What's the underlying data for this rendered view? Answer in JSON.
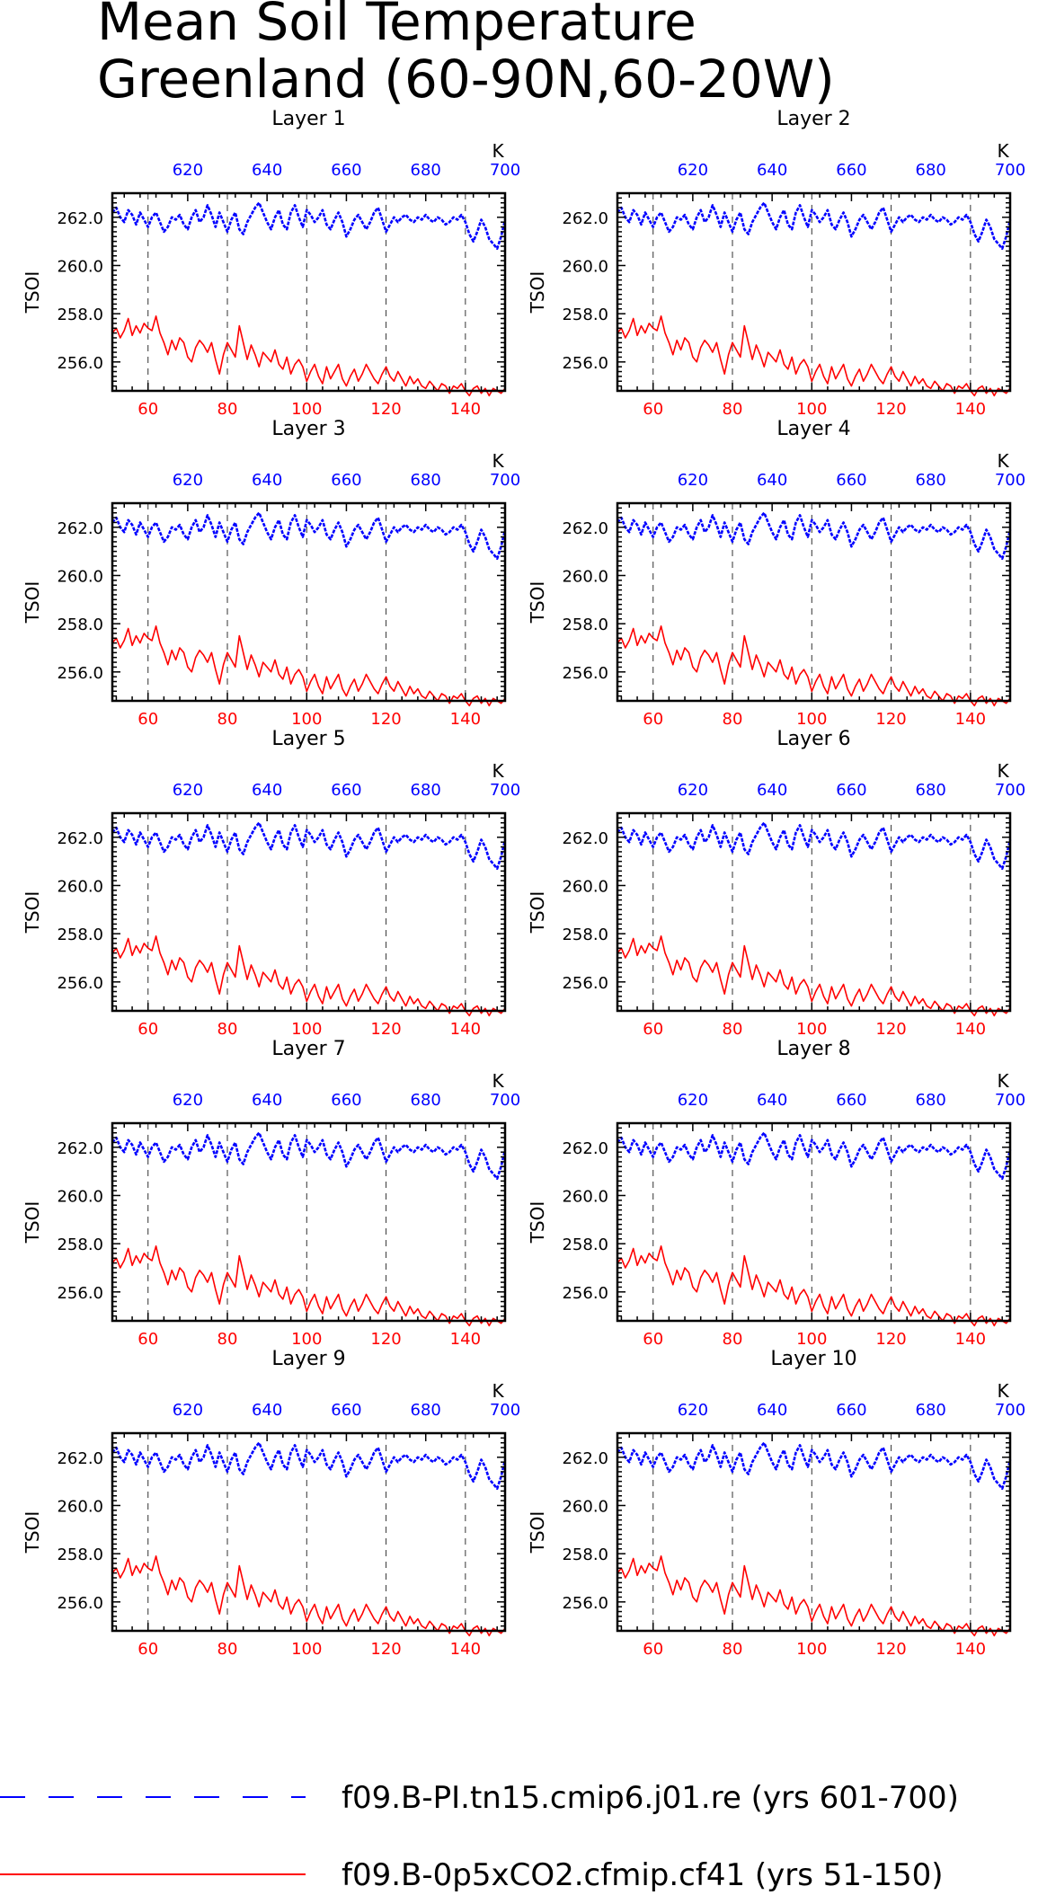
{
  "title_line1": "Mean Soil Temperature",
  "title_line2": "Greenland (60-90N,60-20W)",
  "legend": [
    {
      "label": "f09.B-PI.tn15.cmip6.j01.re (yrs 601-700)",
      "color": "#0000ff",
      "style": "dashed"
    },
    {
      "label": "f09.B-0p5xCO2.cfmip.cf41 (yrs 51-150)",
      "color": "#ff0000",
      "style": "solid"
    }
  ],
  "colors": {
    "pi": "#0000ff",
    "co2": "#ff0000",
    "axis": "#000000"
  },
  "chart_data": {
    "type": "line",
    "panel_titles": [
      "Layer 1",
      "Layer 2",
      "Layer 3",
      "Layer 4",
      "Layer 5",
      "Layer 6",
      "Layer 7",
      "Layer 8",
      "Layer 9",
      "Layer 10"
    ],
    "ylabel": "TSOI",
    "ylim": [
      254.8,
      263.0
    ],
    "yticks": [
      256.0,
      258.0,
      260.0,
      262.0
    ],
    "ytick_labels": [
      "256.0",
      "258.0",
      "260.0",
      "262.0"
    ],
    "bottom_xlim": [
      51,
      150
    ],
    "bottom_xticks": [
      60,
      80,
      100,
      120,
      140
    ],
    "bottom_xtick_labels": [
      "60",
      "80",
      "100",
      "120",
      "140"
    ],
    "top_xlim": [
      601,
      700
    ],
    "top_xticks": [
      620,
      640,
      660,
      680,
      700
    ],
    "top_xtick_labels": [
      "620",
      "640",
      "660",
      "680",
      "700"
    ],
    "top_axis_unit": "K",
    "grid": "dashed vertical lines at bottom-axis ticks",
    "series": [
      {
        "name": "f09.B-PI.tn15.cmip6.j01.re (yrs 601-700)",
        "axis": "top",
        "values": [
          262.2,
          262.4,
          262.0,
          261.8,
          262.3,
          262.1,
          261.7,
          262.2,
          261.9,
          261.6,
          262.0,
          262.2,
          261.8,
          261.4,
          261.6,
          262.0,
          261.9,
          262.1,
          261.7,
          261.5,
          262.0,
          262.3,
          261.8,
          262.0,
          262.5,
          262.1,
          261.6,
          262.2,
          261.8,
          261.4,
          261.9,
          262.2,
          261.5,
          261.3,
          261.8,
          262.1,
          262.4,
          262.6,
          262.2,
          261.8,
          261.5,
          262.0,
          262.3,
          261.7,
          261.5,
          262.2,
          262.5,
          262.0,
          261.6,
          262.3,
          262.1,
          261.8,
          262.0,
          262.3,
          261.7,
          261.5,
          261.9,
          262.2,
          261.8,
          261.2,
          261.5,
          261.9,
          262.1,
          261.8,
          261.5,
          261.8,
          262.2,
          262.4,
          261.9,
          261.4,
          261.7,
          262.0,
          261.8,
          262.0,
          262.1,
          261.9,
          261.8,
          262.0,
          261.9,
          262.1,
          261.9,
          261.8,
          262.0,
          261.9,
          261.7,
          261.8,
          262.0,
          261.9,
          262.1,
          261.8,
          261.3,
          261.0,
          261.4,
          261.9,
          261.6,
          261.1,
          260.9,
          260.7,
          261.2,
          261.9
        ]
      },
      {
        "name": "f09.B-0p5xCO2.cfmip.cf41 (yrs 51-150)",
        "axis": "bottom",
        "values": [
          257.2,
          257.4,
          257.0,
          257.3,
          257.8,
          257.1,
          257.5,
          257.2,
          257.6,
          257.4,
          257.3,
          257.9,
          257.2,
          256.8,
          256.3,
          256.9,
          256.5,
          257.0,
          256.8,
          256.2,
          256.0,
          256.6,
          256.9,
          256.7,
          256.4,
          256.8,
          256.1,
          255.5,
          256.3,
          256.8,
          256.5,
          256.2,
          257.5,
          256.8,
          256.1,
          256.7,
          256.3,
          255.8,
          256.4,
          256.2,
          256.0,
          256.5,
          255.9,
          255.7,
          256.2,
          255.5,
          255.9,
          256.1,
          255.8,
          255.2,
          255.6,
          255.9,
          255.4,
          255.1,
          255.8,
          255.3,
          255.6,
          255.9,
          255.3,
          255.0,
          255.4,
          255.7,
          255.2,
          255.5,
          255.9,
          255.6,
          255.3,
          255.1,
          255.5,
          255.8,
          255.4,
          255.2,
          255.6,
          255.3,
          255.0,
          255.4,
          255.1,
          255.3,
          255.0,
          254.9,
          255.2,
          255.0,
          254.8,
          255.1,
          255.0,
          254.7,
          255.0,
          254.9,
          255.1,
          254.8,
          254.6,
          254.9,
          255.0,
          254.7,
          254.9,
          254.6,
          254.9,
          254.8,
          254.7,
          254.9
        ]
      }
    ]
  }
}
